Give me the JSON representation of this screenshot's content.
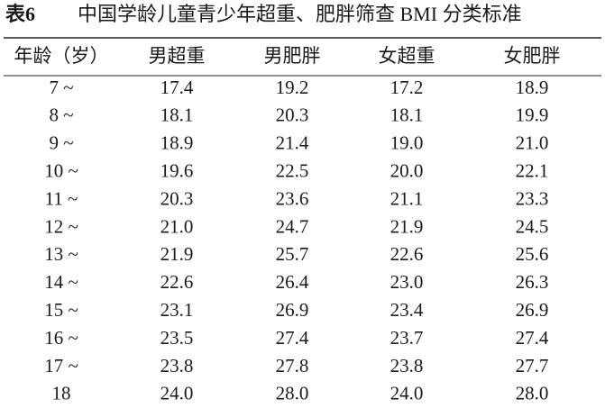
{
  "table": {
    "label": "表6",
    "title": "中国学龄儿童青少年超重、肥胖筛查 BMI 分类标准",
    "header": [
      "年龄（岁）",
      "男超重",
      "男肥胖",
      "女超重",
      "女肥胖"
    ],
    "rows": [
      [
        "7 ~",
        "17.4",
        "19.2",
        "17.2",
        "18.9"
      ],
      [
        "8 ~",
        "18.1",
        "20.3",
        "18.1",
        "19.9"
      ],
      [
        "9 ~",
        "18.9",
        "21.4",
        "19.0",
        "21.0"
      ],
      [
        "10 ~",
        "19.6",
        "22.5",
        "20.0",
        "22.1"
      ],
      [
        "11 ~",
        "20.3",
        "23.6",
        "21.1",
        "23.3"
      ],
      [
        "12 ~",
        "21.0",
        "24.7",
        "21.9",
        "24.5"
      ],
      [
        "13 ~",
        "21.9",
        "25.7",
        "22.6",
        "25.6"
      ],
      [
        "14 ~",
        "22.6",
        "26.4",
        "23.0",
        "26.3"
      ],
      [
        "15 ~",
        "23.1",
        "26.9",
        "23.4",
        "26.9"
      ],
      [
        "16 ~",
        "23.5",
        "27.4",
        "23.7",
        "27.4"
      ],
      [
        "17 ~",
        "23.8",
        "27.8",
        "23.8",
        "27.7"
      ],
      [
        "18",
        "24.0",
        "28.0",
        "24.0",
        "28.0"
      ]
    ]
  }
}
